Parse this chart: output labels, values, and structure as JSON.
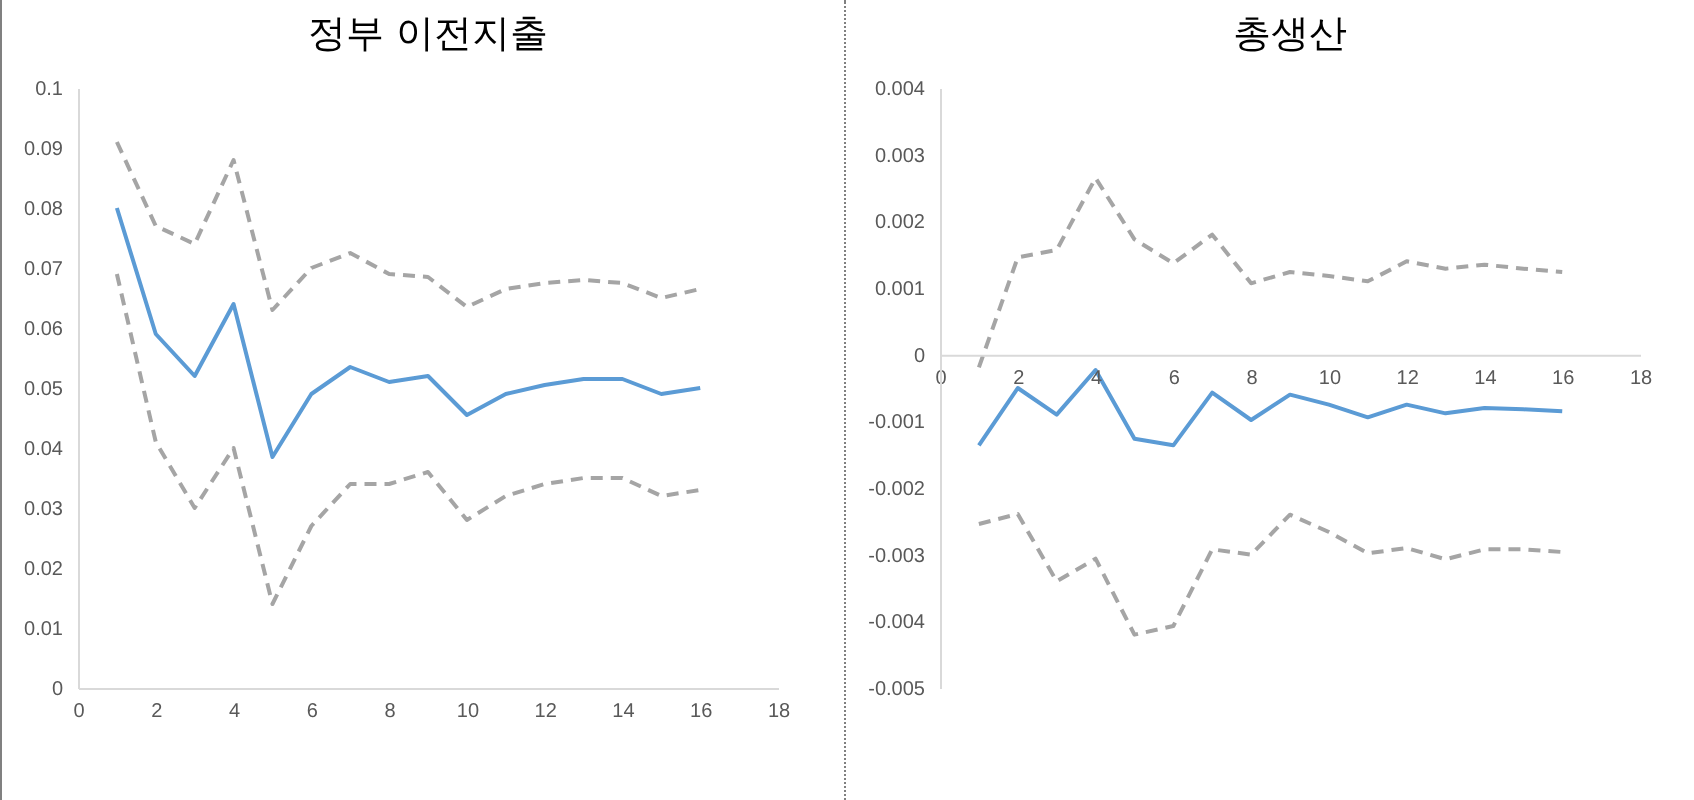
{
  "chart_data": [
    {
      "type": "line",
      "title": "정부 이전지출",
      "x": [
        1,
        2,
        3,
        4,
        5,
        6,
        7,
        8,
        9,
        10,
        11,
        12,
        13,
        14,
        15,
        16
      ],
      "xlim": [
        0,
        18
      ],
      "xticks": [
        0,
        2,
        4,
        6,
        8,
        10,
        12,
        14,
        16,
        18
      ],
      "ylim": [
        0,
        0.1
      ],
      "yticks": [
        0,
        0.01,
        0.02,
        0.03,
        0.04,
        0.05,
        0.06,
        0.07,
        0.08,
        0.09,
        0.1
      ],
      "grid": false,
      "series": [
        {
          "color": "#5b9bd5",
          "line_style": "solid",
          "values": [
            0.08,
            0.059,
            0.052,
            0.064,
            0.0385,
            0.049,
            0.0535,
            0.051,
            0.052,
            0.0455,
            0.049,
            0.0505,
            0.0515,
            0.0515,
            0.049,
            0.05
          ]
        },
        {
          "color": "#a5a5a5",
          "line_style": "dashed",
          "values": [
            0.091,
            0.077,
            0.074,
            0.088,
            0.063,
            0.07,
            0.0725,
            0.069,
            0.0685,
            0.0635,
            0.0665,
            0.0675,
            0.068,
            0.0675,
            0.065,
            0.0665
          ]
        },
        {
          "color": "#a5a5a5",
          "line_style": "dashed",
          "values": [
            0.069,
            0.041,
            0.03,
            0.04,
            0.014,
            0.027,
            0.034,
            0.034,
            0.036,
            0.028,
            0.032,
            0.034,
            0.035,
            0.035,
            0.032,
            0.033
          ]
        }
      ]
    },
    {
      "type": "line",
      "title": "총생산",
      "x": [
        1,
        2,
        3,
        4,
        5,
        6,
        7,
        8,
        9,
        10,
        11,
        12,
        13,
        14,
        15,
        16
      ],
      "xlim": [
        0,
        18
      ],
      "xticks": [
        0,
        2,
        4,
        6,
        8,
        10,
        12,
        14,
        16,
        18
      ],
      "ylim": [
        -0.005,
        0.004
      ],
      "yticks": [
        -0.005,
        -0.004,
        -0.003,
        -0.002,
        -0.001,
        0,
        0.001,
        0.002,
        0.003,
        0.004
      ],
      "grid": false,
      "series": [
        {
          "color": "#5b9bd5",
          "line_style": "solid",
          "values": [
            -0.00136,
            -0.0005,
            -0.0009,
            -0.00023,
            -0.00126,
            -0.00136,
            -0.00057,
            -0.00098,
            -0.0006,
            -0.00075,
            -0.00094,
            -0.00075,
            -0.00088,
            -0.0008,
            -0.00082,
            -0.00085
          ]
        },
        {
          "color": "#a5a5a5",
          "line_style": "dashed",
          "values": [
            -0.00019,
            0.00146,
            0.00157,
            0.00265,
            0.00173,
            0.00137,
            0.0018,
            0.00107,
            0.00124,
            0.00118,
            0.0011,
            0.0014,
            0.00129,
            0.00135,
            0.00129,
            0.00124
          ]
        },
        {
          "color": "#a5a5a5",
          "line_style": "dashed",
          "values": [
            -0.00254,
            -0.00239,
            -0.0034,
            -0.00306,
            -0.0042,
            -0.00407,
            -0.00292,
            -0.003,
            -0.0024,
            -0.00266,
            -0.00298,
            -0.0029,
            -0.00307,
            -0.00292,
            -0.00292,
            -0.00296
          ]
        }
      ]
    }
  ]
}
